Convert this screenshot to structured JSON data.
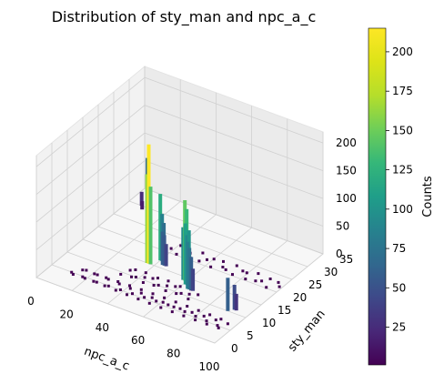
{
  "chart_data": {
    "type": "3d-bar-histogram",
    "title": "Distribution of sty_man and npc_a_c",
    "xlabel": "npc_a_c",
    "ylabel": "sty_man",
    "zlabel": "",
    "colorbar_label": "Counts",
    "colormap": "viridis",
    "xlim": [
      0,
      100
    ],
    "ylim": [
      0,
      35
    ],
    "zlim": [
      0,
      220
    ],
    "xticks": [
      "0",
      "20",
      "40",
      "60",
      "80",
      "100"
    ],
    "yticks": [
      "0",
      "5",
      "10",
      "15",
      "20",
      "25",
      "30",
      "35"
    ],
    "zticks": [
      "0",
      "50",
      "100",
      "150",
      "200"
    ],
    "colorbar_ticks": [
      "25",
      "50",
      "75",
      "100",
      "125",
      "150",
      "175",
      "200"
    ],
    "colorbar_range": [
      1,
      215
    ],
    "grid": true,
    "bars": [
      {
        "x": 5,
        "y": 33,
        "z": 70
      },
      {
        "x": 7,
        "y": 30,
        "z": 25
      },
      {
        "x": 9,
        "y": 29,
        "z": 15
      },
      {
        "x": 36,
        "y": 15,
        "z": 160
      },
      {
        "x": 37,
        "y": 15,
        "z": 215
      },
      {
        "x": 38,
        "y": 15,
        "z": 140
      },
      {
        "x": 40,
        "y": 17,
        "z": 120
      },
      {
        "x": 41,
        "y": 17,
        "z": 85
      },
      {
        "x": 42,
        "y": 17,
        "z": 70
      },
      {
        "x": 43,
        "y": 16,
        "z": 60
      },
      {
        "x": 44,
        "y": 16,
        "z": 55
      },
      {
        "x": 45,
        "y": 16,
        "z": 40
      },
      {
        "x": 58,
        "y": 14,
        "z": 95
      },
      {
        "x": 59,
        "y": 14,
        "z": 145
      },
      {
        "x": 60,
        "y": 14,
        "z": 130
      },
      {
        "x": 61,
        "y": 13,
        "z": 110
      },
      {
        "x": 62,
        "y": 13,
        "z": 90
      },
      {
        "x": 63,
        "y": 13,
        "z": 100
      },
      {
        "x": 64,
        "y": 12,
        "z": 85
      },
      {
        "x": 65,
        "y": 12,
        "z": 75
      },
      {
        "x": 66,
        "y": 12,
        "z": 60
      },
      {
        "x": 67,
        "y": 12,
        "z": 40
      },
      {
        "x": 90,
        "y": 10,
        "z": 60
      },
      {
        "x": 92,
        "y": 11,
        "z": 45
      },
      {
        "x": 93,
        "y": 11,
        "z": 30
      }
    ]
  }
}
